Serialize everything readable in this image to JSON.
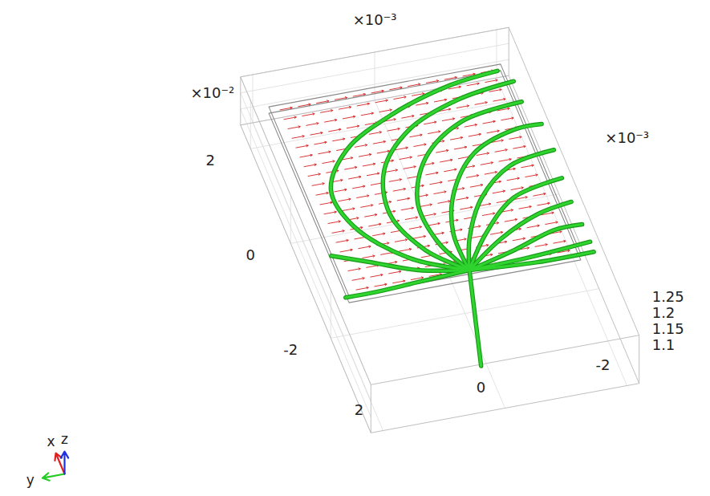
{
  "chart_data": {
    "type": "3d_streamline",
    "xlim": [
      -4,
      2.5
    ],
    "xticks": [
      -2,
      0,
      2
    ],
    "ylim": [
      -2.2,
      2.2
    ],
    "yticks": [
      -2,
      0,
      2
    ],
    "zlim": [
      1.1,
      1.25
    ],
    "zticks": [
      1.1,
      1.15,
      1.2,
      1.25
    ],
    "axis_multipliers": {
      "x": "×10⁻²",
      "y": "×10⁻³",
      "z": "×10⁻³"
    },
    "grid": true,
    "plate": {
      "x": [
        -2,
        2
      ],
      "y": [
        -1.9,
        1.9
      ],
      "z": [
        1.2,
        1.22
      ]
    },
    "streamlines": {
      "color": "#2fd42f",
      "z": 1.21,
      "lines": [
        [
          [
            -1.86,
            -0.12
          ],
          [
            -3.78,
            0.32
          ]
        ],
        [
          [
            -1.86,
            -0.12
          ],
          [
            -1.41,
            0.71
          ],
          [
            -0.58,
            1.36
          ],
          [
            0.21,
            1.47
          ],
          [
            0.94,
            0.97
          ],
          [
            1.48,
            0.03
          ],
          [
            1.83,
            -1.01
          ],
          [
            1.94,
            -1.83
          ]
        ],
        [
          [
            -1.86,
            -0.12
          ],
          [
            -1.31,
            0.42
          ],
          [
            -0.47,
            0.73
          ],
          [
            0.41,
            0.53
          ],
          [
            1.11,
            -0.11
          ],
          [
            1.52,
            -1.04
          ],
          [
            1.68,
            -2.01
          ]
        ],
        [
          [
            -1.86,
            -0.12
          ],
          [
            -1.19,
            0.18
          ],
          [
            -0.34,
            0.23
          ],
          [
            0.5,
            -0.18
          ],
          [
            1.08,
            -0.96
          ],
          [
            1.25,
            -2.0
          ]
        ],
        [
          [
            -1.86,
            -0.12
          ],
          [
            -1.09,
            -0.11
          ],
          [
            -0.31,
            -0.37
          ],
          [
            0.41,
            -0.94
          ],
          [
            0.73,
            -1.7
          ],
          [
            0.74,
            -2.16
          ]
        ],
        [
          [
            -1.86,
            -0.12
          ],
          [
            -1.23,
            -0.33
          ],
          [
            -0.49,
            -0.77
          ],
          [
            0.04,
            -1.41
          ],
          [
            0.19,
            -2.18
          ]
        ],
        [
          [
            -1.86,
            -0.12
          ],
          [
            -1.21,
            -0.6
          ],
          [
            -0.6,
            -1.26
          ],
          [
            -0.39,
            -2.12
          ]
        ],
        [
          [
            -1.86,
            -0.12
          ],
          [
            -1.35,
            -0.82
          ],
          [
            -1.01,
            -1.52
          ],
          [
            -0.89,
            -2.11
          ]
        ],
        [
          [
            -1.86,
            -0.12
          ],
          [
            -1.63,
            -0.93
          ],
          [
            -1.38,
            -1.67
          ],
          [
            -1.37,
            -2.13
          ]
        ],
        [
          [
            -1.86,
            -0.12
          ],
          [
            -1.83,
            -1.06
          ],
          [
            -1.74,
            -2.14
          ]
        ],
        [
          [
            -1.86,
            -0.12
          ],
          [
            -1.95,
            -1.19
          ],
          [
            -1.95,
            -2.13
          ]
        ],
        [
          [
            -1.86,
            -0.12
          ],
          [
            -1.67,
            0.67
          ],
          [
            -1.34,
            1.35
          ],
          [
            -1.08,
            1.89
          ]
        ],
        [
          [
            -1.86,
            -0.12
          ],
          [
            -1.91,
            0.75
          ],
          [
            -1.95,
            1.43
          ],
          [
            -1.95,
            1.94
          ]
        ]
      ]
    },
    "arrows": {
      "color": "#d62020",
      "z": 1.22,
      "dy": -0.2,
      "x": [
        -1.9,
        -1.7,
        -1.5,
        -1.3,
        -1.1,
        -0.9,
        -0.7,
        -0.5,
        -0.3,
        -0.1,
        0.1,
        0.3,
        0.5,
        0.7,
        0.9,
        1.1,
        1.3,
        1.5,
        1.7,
        1.9
      ],
      "y": [
        1.75,
        1.45,
        1.15,
        0.85,
        0.55,
        0.25,
        -0.05,
        -0.35,
        -0.65,
        -0.95,
        -1.25,
        -1.55
      ]
    },
    "triad": {
      "labels": [
        "x",
        "y",
        "z"
      ],
      "colors": [
        "#e02020",
        "#22cc22",
        "#2030e0"
      ]
    }
  }
}
